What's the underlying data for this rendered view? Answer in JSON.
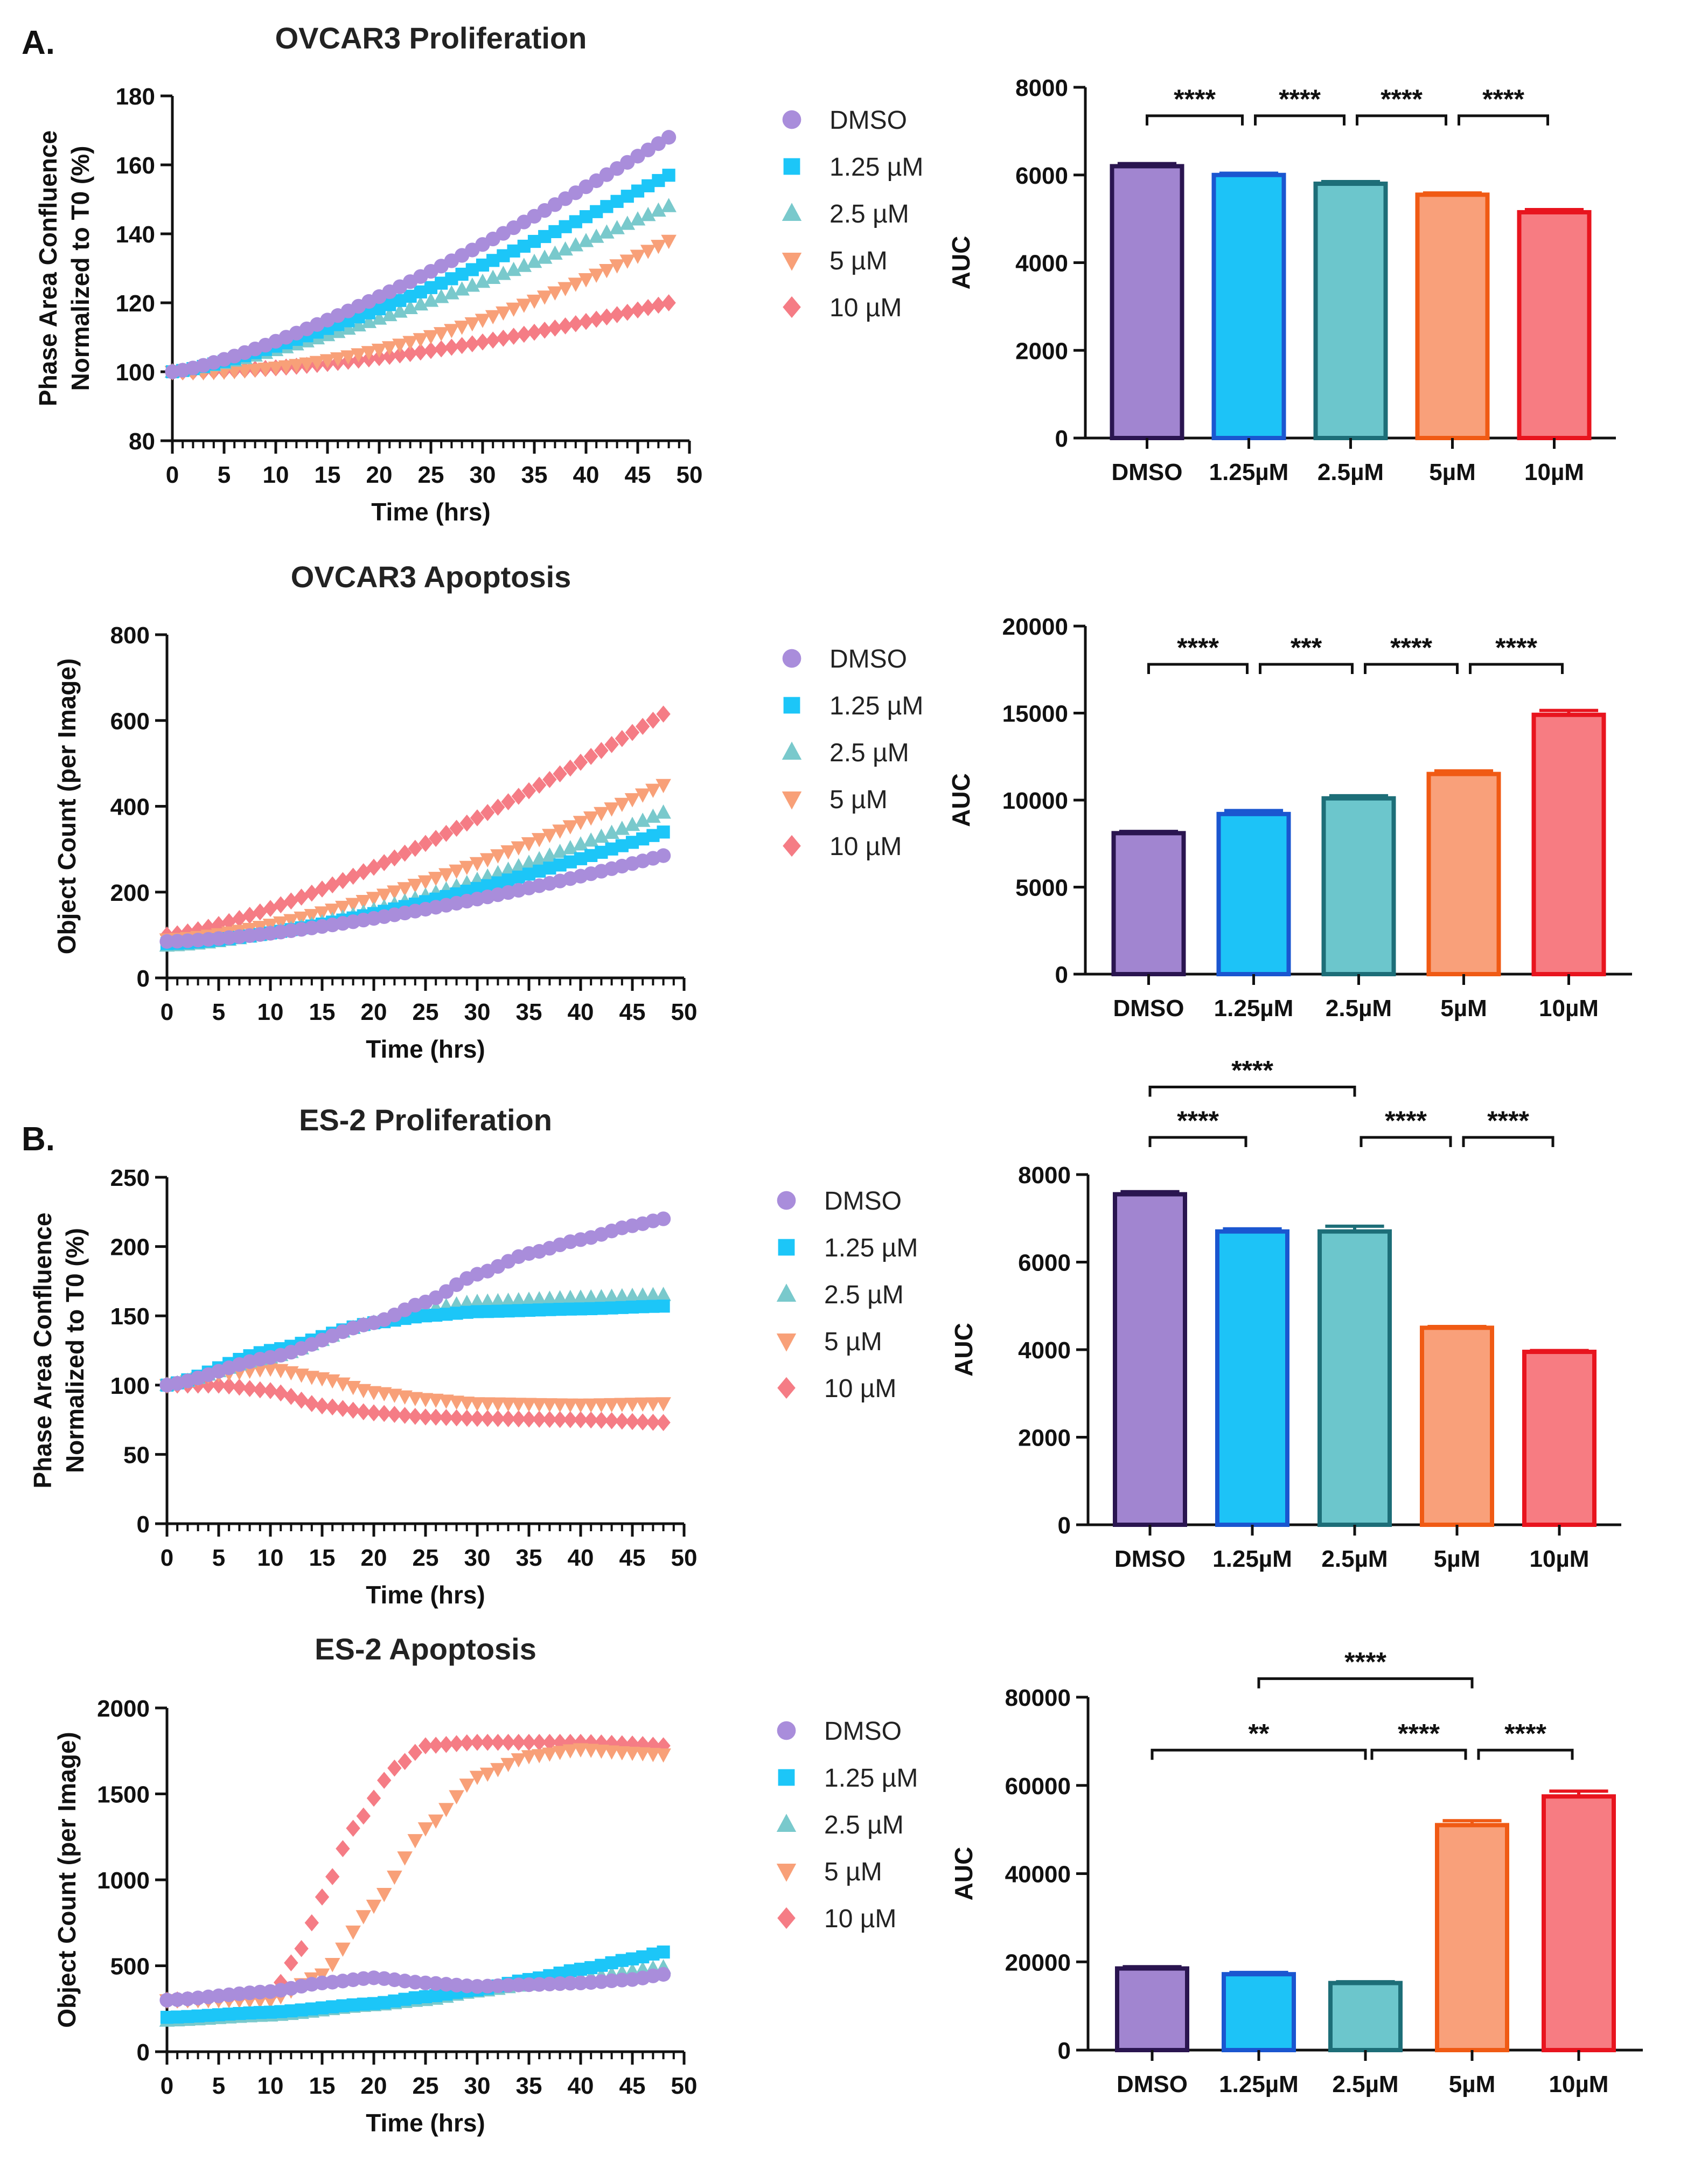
{
  "panels": [
    "A.",
    "B."
  ],
  "legend_labels": [
    "DMSO",
    "1.25 µM",
    "2.5 µM",
    "5 µM",
    "10 µM"
  ],
  "bar_categories": [
    "DMSO",
    "1.25µM",
    "2.5µM",
    "5µM",
    "10µM"
  ],
  "colors": {
    "fills": [
      "#a185d0",
      "#1dc3f7",
      "#6cc6cc",
      "#f9a07a",
      "#f77c82"
    ],
    "edges": [
      "#2a1550",
      "#1a56d0",
      "#1d6e78",
      "#f05a14",
      "#e8141e"
    ],
    "markers": [
      "#a98ddb",
      "#1cc6f8",
      "#79c9cc",
      "#f8a078",
      "#f57c85"
    ]
  },
  "chart_data": [
    {
      "id": "ovcar3-proliferation",
      "type": "scatter",
      "title": "OVCAR3 Proliferation",
      "ylabel": [
        "Phase Area Confluence",
        "Normalized to T0 (%)"
      ],
      "xlabel": "Time (hrs)",
      "xlim": [
        0,
        50
      ],
      "ylim": [
        80,
        180
      ],
      "xticks": [
        0,
        5,
        10,
        15,
        20,
        25,
        30,
        35,
        40,
        45,
        50
      ],
      "yticks": [
        80,
        100,
        120,
        140,
        160,
        180
      ],
      "series_end": [
        168,
        157,
        148,
        138,
        120
      ],
      "series_curve": [
        1.3,
        1.3,
        1.3,
        1.6,
        1.3
      ],
      "series_dip": [
        0,
        0,
        0,
        0.02,
        0.03
      ]
    },
    {
      "id": "ovcar3-proliferation-auc",
      "type": "bar",
      "ylabel": "AUC",
      "ylim": [
        0,
        8000
      ],
      "yticks": [
        0,
        2000,
        4000,
        6000,
        8000
      ],
      "values": [
        6200,
        6000,
        5800,
        5550,
        5150
      ],
      "errors": [
        60,
        40,
        50,
        40,
        60
      ],
      "significance": [
        {
          "from": 0,
          "to": 1,
          "label": "****",
          "level": 7350
        },
        {
          "from": 1,
          "to": 2,
          "label": "****",
          "level": 7350
        },
        {
          "from": 2,
          "to": 3,
          "label": "****",
          "level": 7350
        },
        {
          "from": 3,
          "to": 4,
          "label": "****",
          "level": 7350
        }
      ]
    },
    {
      "id": "ovcar3-apoptosis",
      "type": "scatter",
      "title": "OVCAR3 Apoptosis",
      "ylabel": [
        "Object Count (per Image)"
      ],
      "xlabel": "Time (hrs)",
      "xlim": [
        0,
        50
      ],
      "ylim": [
        0,
        800
      ],
      "xticks": [
        0,
        5,
        10,
        15,
        20,
        25,
        30,
        35,
        40,
        45,
        50
      ],
      "yticks": [
        0,
        200,
        400,
        600,
        800
      ],
      "series_start": [
        85,
        80,
        75,
        90,
        100
      ],
      "series_end": [
        285,
        340,
        385,
        450,
        615
      ],
      "series_curve": [
        1.5,
        1.5,
        1.5,
        1.5,
        1.35
      ]
    },
    {
      "id": "ovcar3-apoptosis-auc",
      "type": "bar",
      "ylabel": "AUC",
      "ylim": [
        0,
        20000
      ],
      "yticks": [
        0,
        5000,
        10000,
        15000,
        20000
      ],
      "values": [
        8100,
        9200,
        10100,
        11500,
        14900
      ],
      "errors": [
        100,
        200,
        150,
        180,
        250
      ],
      "significance": [
        {
          "from": 0,
          "to": 1,
          "label": "****",
          "level": 17800
        },
        {
          "from": 1,
          "to": 2,
          "label": "***",
          "level": 17800
        },
        {
          "from": 2,
          "to": 3,
          "label": "****",
          "level": 17800
        },
        {
          "from": 3,
          "to": 4,
          "label": "****",
          "level": 17800
        }
      ]
    },
    {
      "id": "es2-proliferation",
      "type": "scatter",
      "title": "ES-2 Proliferation",
      "ylabel": [
        "Phase Area Confluence",
        "Normalized to T0 (%)"
      ],
      "xlabel": "Time (hrs)",
      "xlim": [
        0,
        50
      ],
      "ylim": [
        0,
        250
      ],
      "xticks": [
        0,
        5,
        10,
        15,
        20,
        25,
        30,
        35,
        40,
        45,
        50
      ],
      "yticks": [
        0,
        50,
        100,
        150,
        200,
        250
      ],
      "keypoints": [
        [
          [
            0,
            100
          ],
          [
            10,
            120
          ],
          [
            20,
            145
          ],
          [
            25,
            160
          ],
          [
            30,
            180
          ],
          [
            35,
            195
          ],
          [
            40,
            205
          ],
          [
            45,
            215
          ],
          [
            48,
            220
          ]
        ],
        [
          [
            0,
            100
          ],
          [
            10,
            125
          ],
          [
            20,
            145
          ],
          [
            25,
            150
          ],
          [
            30,
            153
          ],
          [
            40,
            155
          ],
          [
            48,
            157
          ]
        ],
        [
          [
            0,
            100
          ],
          [
            10,
            120
          ],
          [
            20,
            145
          ],
          [
            25,
            155
          ],
          [
            30,
            160
          ],
          [
            40,
            163
          ],
          [
            48,
            165
          ]
        ],
        [
          [
            0,
            100
          ],
          [
            5,
            108
          ],
          [
            10,
            112
          ],
          [
            15,
            105
          ],
          [
            20,
            95
          ],
          [
            25,
            90
          ],
          [
            30,
            87
          ],
          [
            40,
            86
          ],
          [
            48,
            87
          ]
        ],
        [
          [
            0,
            100
          ],
          [
            5,
            100
          ],
          [
            10,
            96
          ],
          [
            15,
            85
          ],
          [
            20,
            80
          ],
          [
            25,
            77
          ],
          [
            30,
            76
          ],
          [
            40,
            75
          ],
          [
            48,
            73
          ]
        ]
      ]
    },
    {
      "id": "es2-proliferation-auc",
      "type": "bar",
      "ylabel": "AUC",
      "ylim": [
        0,
        8000
      ],
      "yticks": [
        0,
        2000,
        4000,
        6000,
        8000
      ],
      "values": [
        7550,
        6700,
        6700,
        4500,
        3950
      ],
      "errors": [
        60,
        60,
        120,
        30,
        30
      ],
      "significance": [
        {
          "from": 0,
          "to": 2,
          "label": "****",
          "level": 10000
        },
        {
          "from": 0,
          "to": 1,
          "label": "****",
          "level": 8850
        },
        {
          "from": 2,
          "to": 3,
          "label": "****",
          "level": 8850
        },
        {
          "from": 3,
          "to": 4,
          "label": "****",
          "level": 8850
        }
      ]
    },
    {
      "id": "es2-apoptosis",
      "type": "scatter",
      "title": "ES-2 Apoptosis",
      "ylabel": [
        "Object Count (per Image)"
      ],
      "xlabel": "Time (hrs)",
      "xlim": [
        0,
        50
      ],
      "ylim": [
        0,
        2000
      ],
      "xticks": [
        0,
        5,
        10,
        15,
        20,
        25,
        30,
        35,
        40,
        45,
        50
      ],
      "yticks": [
        0,
        500,
        1000,
        1500,
        2000
      ],
      "keypoints": [
        [
          [
            0,
            300
          ],
          [
            10,
            350
          ],
          [
            15,
            400
          ],
          [
            20,
            430
          ],
          [
            25,
            400
          ],
          [
            30,
            380
          ],
          [
            35,
            390
          ],
          [
            40,
            400
          ],
          [
            45,
            420
          ],
          [
            48,
            450
          ]
        ],
        [
          [
            0,
            200
          ],
          [
            10,
            230
          ],
          [
            20,
            280
          ],
          [
            25,
            320
          ],
          [
            30,
            360
          ],
          [
            35,
            420
          ],
          [
            40,
            480
          ],
          [
            45,
            540
          ],
          [
            48,
            580
          ]
        ],
        [
          [
            0,
            180
          ],
          [
            10,
            210
          ],
          [
            20,
            270
          ],
          [
            25,
            300
          ],
          [
            30,
            350
          ],
          [
            35,
            390
          ],
          [
            40,
            430
          ],
          [
            48,
            490
          ]
        ],
        [
          [
            0,
            300
          ],
          [
            10,
            300
          ],
          [
            15,
            450
          ],
          [
            20,
            850
          ],
          [
            25,
            1300
          ],
          [
            30,
            1600
          ],
          [
            35,
            1720
          ],
          [
            40,
            1760
          ],
          [
            45,
            1740
          ],
          [
            48,
            1730
          ]
        ],
        [
          [
            0,
            300
          ],
          [
            10,
            320
          ],
          [
            13,
            600
          ],
          [
            15,
            900
          ],
          [
            18,
            1300
          ],
          [
            22,
            1650
          ],
          [
            25,
            1780
          ],
          [
            30,
            1800
          ],
          [
            35,
            1800
          ],
          [
            40,
            1800
          ],
          [
            45,
            1790
          ],
          [
            48,
            1780
          ]
        ]
      ]
    },
    {
      "id": "es2-apoptosis-auc",
      "type": "bar",
      "ylabel": "AUC",
      "ylim": [
        0,
        80000
      ],
      "yticks": [
        0,
        20000,
        40000,
        60000,
        80000
      ],
      "values": [
        18500,
        17200,
        15200,
        51000,
        57500
      ],
      "errors": [
        400,
        400,
        300,
        1000,
        1200
      ],
      "significance": [
        {
          "from": 1,
          "to": 3,
          "label": "****",
          "level": 84200
        },
        {
          "from": 0,
          "to": 2,
          "label": "**",
          "level": 68000
        },
        {
          "from": 2,
          "to": 3,
          "label": "****",
          "level": 68000
        },
        {
          "from": 3,
          "to": 4,
          "label": "****",
          "level": 68000
        }
      ]
    }
  ]
}
